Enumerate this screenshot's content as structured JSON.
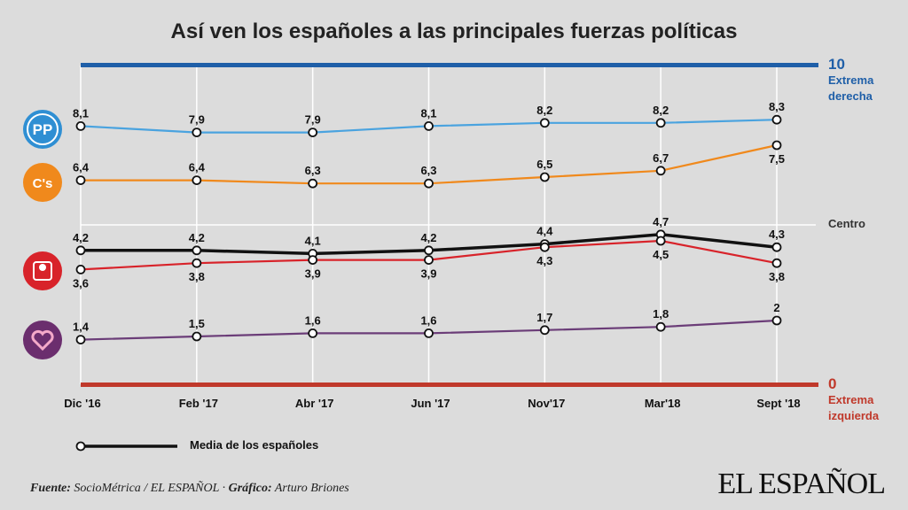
{
  "title": "Así ven los españoles a las principales fuerzas políticas",
  "scale": {
    "top_value": "10",
    "top_label_1": "Extrema",
    "top_label_2": "derecha",
    "center_label": "Centro",
    "bottom_value": "0",
    "bottom_label_1": "Extrema",
    "bottom_label_2": "izquierda"
  },
  "legend": {
    "label": "Media de los españoles"
  },
  "footer": {
    "source_label": "Fuente:",
    "source_text": "SocioMétrica / EL ESPAÑOL",
    "separator": "·",
    "graphic_label": "Gráfico:",
    "graphic_text": "Arturo Briones"
  },
  "brand": "EL ESPAÑOL",
  "party_icons": [
    {
      "name": "pp-logo-icon",
      "text": "PP",
      "color": "#2f8fd3"
    },
    {
      "name": "cs-logo-icon",
      "text": "C's",
      "color": "#f0891c"
    },
    {
      "name": "psoe-logo-icon",
      "text": "",
      "color": "#d8232a"
    },
    {
      "name": "podemos-logo-icon",
      "text": "",
      "color": "#6b2e6e"
    }
  ],
  "colors": {
    "top_bar": "#1f5fa8",
    "bottom_bar": "#c0392b",
    "grid": "#ffffff"
  },
  "chart_data": {
    "type": "line",
    "categories": [
      "Dic '16",
      "Feb '17",
      "Abr '17",
      "Jun '17",
      "Nov'17",
      "Mar'18",
      "Sept '18"
    ],
    "ylim": [
      0,
      10
    ],
    "grid": true,
    "series": [
      {
        "key": "pp",
        "values": [
          8.1,
          7.9,
          7.9,
          8.1,
          8.2,
          8.2,
          8.3
        ],
        "labels": [
          "8,1",
          "7,9",
          "7,9",
          "8,1",
          "8,2",
          "8,2",
          "8,3"
        ],
        "color": "#4aa3df",
        "label_pos": [
          "above",
          "above",
          "above",
          "above",
          "above",
          "above",
          "above"
        ]
      },
      {
        "key": "cs",
        "values": [
          6.4,
          6.4,
          6.3,
          6.3,
          6.5,
          6.7,
          7.5
        ],
        "labels": [
          "6,4",
          "6,4",
          "6,3",
          "6,3",
          "6,5",
          "6,7",
          "7,5"
        ],
        "color": "#f0891c",
        "label_pos": [
          "above",
          "above",
          "above",
          "above",
          "above",
          "above",
          "below"
        ]
      },
      {
        "name": "Media de los españoles",
        "key": "media",
        "values": [
          4.2,
          4.2,
          4.1,
          4.2,
          4.4,
          4.7,
          4.3
        ],
        "labels": [
          "4,2",
          "4,2",
          "4,1",
          "4,2",
          "4,4",
          "4,7",
          "4,3"
        ],
        "color": "#111111",
        "label_pos": [
          "above",
          "above",
          "above",
          "above",
          "above",
          "above",
          "above"
        ]
      },
      {
        "key": "psoe",
        "values": [
          3.6,
          3.8,
          3.9,
          3.9,
          4.3,
          4.5,
          3.8
        ],
        "labels": [
          "3,6",
          "3,8",
          "3,9",
          "3,9",
          "4,3",
          "4,5",
          "3,8"
        ],
        "color": "#d8232a",
        "label_pos": [
          "below",
          "below",
          "below",
          "below",
          "below",
          "below",
          "below"
        ]
      },
      {
        "key": "podemos",
        "values": [
          1.4,
          1.5,
          1.6,
          1.6,
          1.7,
          1.8,
          2.0
        ],
        "labels": [
          "1,4",
          "1,5",
          "1,6",
          "1,6",
          "1,7",
          "1,8",
          "2"
        ],
        "color": "#6b3d78",
        "label_pos": [
          "above",
          "above",
          "above",
          "above",
          "above",
          "above",
          "above"
        ]
      }
    ]
  }
}
